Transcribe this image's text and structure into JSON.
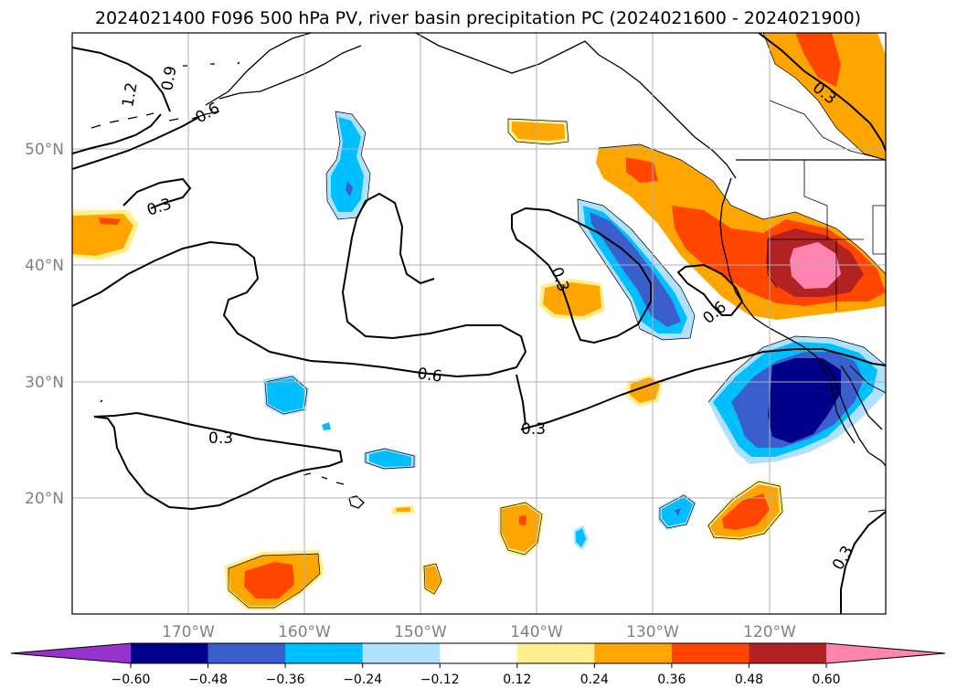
{
  "title": "2024021400 F096 500 hPa PV, river basin precipitation PC (2024021600 - 2024021900)",
  "lat_labels": [
    "50°N",
    "40°N",
    "30°N",
    "20°N"
  ],
  "lon_labels": [
    "170°W",
    "160°W",
    "150°W",
    "140°W",
    "130°W",
    "120°W"
  ],
  "colorbar": {
    "ticks": [
      "−0.60",
      "−0.48",
      "−0.36",
      "−0.24",
      "−0.12",
      "0.12",
      "0.24",
      "0.36",
      "0.48",
      "0.60"
    ],
    "colors": [
      "#9932cc",
      "#00008b",
      "#3a5fcd",
      "#00bfff",
      "#b0e2ff",
      "#ffffff",
      "#fff08f",
      "#ffa500",
      "#ff4500",
      "#b22222",
      "#ff85b0"
    ]
  },
  "contour_labels": [
    "1.2",
    "0.9",
    "0.6",
    "0.3",
    "0.3",
    "0.6",
    "0.3",
    "0.6",
    "0.3",
    "0.3",
    "0.3"
  ]
}
